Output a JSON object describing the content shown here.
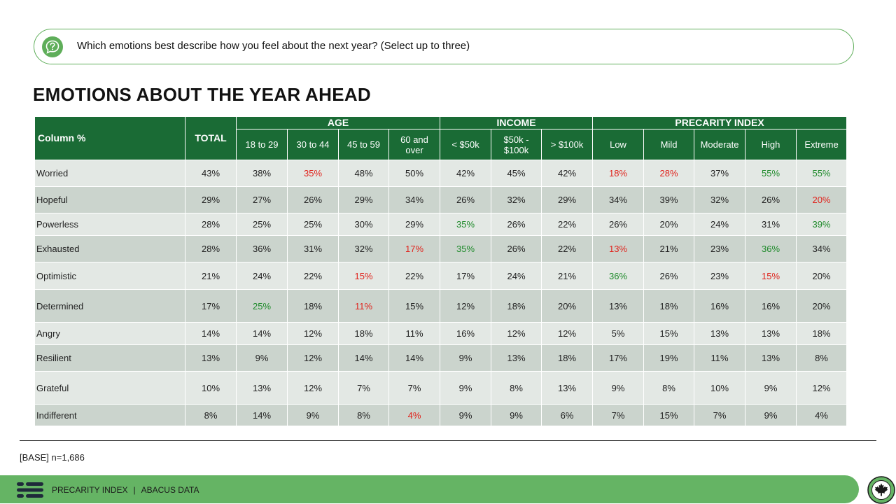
{
  "question": {
    "text": "Which emotions best describe how you feel about the next year? (Select up to three)",
    "icon": "question-bubble-icon"
  },
  "title": "EMOTIONS ABOUT THE YEAR AHEAD",
  "table": {
    "stub_header": "Column %",
    "total_header": "TOTAL",
    "groups": [
      {
        "label": "AGE",
        "columns": [
          "18 to 29",
          "30 to 44",
          "45 to 59",
          "60 and over"
        ]
      },
      {
        "label": "INCOME",
        "columns": [
          "< $50k",
          "$50k - $100k",
          "> $100k"
        ]
      },
      {
        "label": "PRECARITY INDEX",
        "columns": [
          "Low",
          "Mild",
          "Moderate",
          "High",
          "Extreme"
        ]
      }
    ],
    "rows": [
      {
        "label": "Worried",
        "values": [
          "43%",
          "38%",
          "35%",
          "48%",
          "50%",
          "42%",
          "45%",
          "42%",
          "18%",
          "28%",
          "37%",
          "55%",
          "55%"
        ],
        "flags": [
          "",
          "",
          "down",
          "",
          "",
          "",
          "",
          "",
          "down",
          "down",
          "",
          "up",
          "up"
        ]
      },
      {
        "label": "Hopeful",
        "values": [
          "29%",
          "27%",
          "26%",
          "29%",
          "34%",
          "26%",
          "32%",
          "29%",
          "34%",
          "39%",
          "32%",
          "26%",
          "20%"
        ],
        "flags": [
          "",
          "",
          "",
          "",
          "",
          "",
          "",
          "",
          "",
          "",
          "",
          "",
          "down"
        ]
      },
      {
        "label": "Powerless",
        "values": [
          "28%",
          "25%",
          "25%",
          "30%",
          "29%",
          "35%",
          "26%",
          "22%",
          "26%",
          "20%",
          "24%",
          "31%",
          "39%"
        ],
        "flags": [
          "",
          "",
          "",
          "",
          "",
          "up",
          "",
          "",
          "",
          "",
          "",
          "",
          "up"
        ]
      },
      {
        "label": "Exhausted",
        "values": [
          "28%",
          "36%",
          "31%",
          "32%",
          "17%",
          "35%",
          "26%",
          "22%",
          "13%",
          "21%",
          "23%",
          "36%",
          "34%"
        ],
        "flags": [
          "",
          "",
          "",
          "",
          "down",
          "up",
          "",
          "",
          "down",
          "",
          "",
          "up",
          ""
        ]
      },
      {
        "label": "Optimistic",
        "values": [
          "21%",
          "24%",
          "22%",
          "15%",
          "22%",
          "17%",
          "24%",
          "21%",
          "36%",
          "26%",
          "23%",
          "15%",
          "20%"
        ],
        "flags": [
          "",
          "",
          "",
          "down",
          "",
          "",
          "",
          "",
          "up",
          "",
          "",
          "down",
          ""
        ]
      },
      {
        "label": "Determined",
        "values": [
          "17%",
          "25%",
          "18%",
          "11%",
          "15%",
          "12%",
          "18%",
          "20%",
          "13%",
          "18%",
          "16%",
          "16%",
          "20%"
        ],
        "flags": [
          "",
          "up",
          "",
          "down",
          "",
          "",
          "",
          "",
          "",
          "",
          "",
          "",
          ""
        ]
      },
      {
        "label": "Angry",
        "values": [
          "14%",
          "14%",
          "12%",
          "18%",
          "11%",
          "16%",
          "12%",
          "12%",
          "5%",
          "15%",
          "13%",
          "13%",
          "18%"
        ],
        "flags": [
          "",
          "",
          "",
          "",
          "",
          "",
          "",
          "",
          "",
          "",
          "",
          "",
          ""
        ]
      },
      {
        "label": "Resilient",
        "values": [
          "13%",
          "9%",
          "12%",
          "14%",
          "14%",
          "9%",
          "13%",
          "18%",
          "17%",
          "19%",
          "11%",
          "13%",
          "8%"
        ],
        "flags": [
          "",
          "",
          "",
          "",
          "",
          "",
          "",
          "",
          "",
          "",
          "",
          "",
          ""
        ]
      },
      {
        "label": "Grateful",
        "values": [
          "10%",
          "13%",
          "12%",
          "7%",
          "7%",
          "9%",
          "8%",
          "13%",
          "9%",
          "8%",
          "10%",
          "9%",
          "12%"
        ],
        "flags": [
          "",
          "",
          "",
          "",
          "",
          "",
          "",
          "",
          "",
          "",
          "",
          "",
          ""
        ]
      },
      {
        "label": "Indifferent",
        "values": [
          "8%",
          "14%",
          "9%",
          "8%",
          "4%",
          "9%",
          "9%",
          "6%",
          "7%",
          "15%",
          "7%",
          "9%",
          "4%"
        ],
        "flags": [
          "",
          "",
          "",
          "",
          "down",
          "",
          "",
          "",
          "",
          "",
          "",
          "",
          ""
        ]
      }
    ]
  },
  "base_note": "[BASE] n=1,686",
  "footer": {
    "left": "PRECARITY INDEX",
    "separator": "|",
    "right": "ABACUS DATA",
    "logo_icon": "abacus-logo-icon",
    "badge_icon": "maple-leaf-badge-icon"
  },
  "colors": {
    "header_green": "#1a6b35",
    "footer_green": "#65b464",
    "outline_green": "#5fae5a",
    "row_light": "#e3e8e4",
    "row_dark": "#cbd4cd",
    "significant_high": "#1e8a2a",
    "significant_low": "#e0231c"
  }
}
